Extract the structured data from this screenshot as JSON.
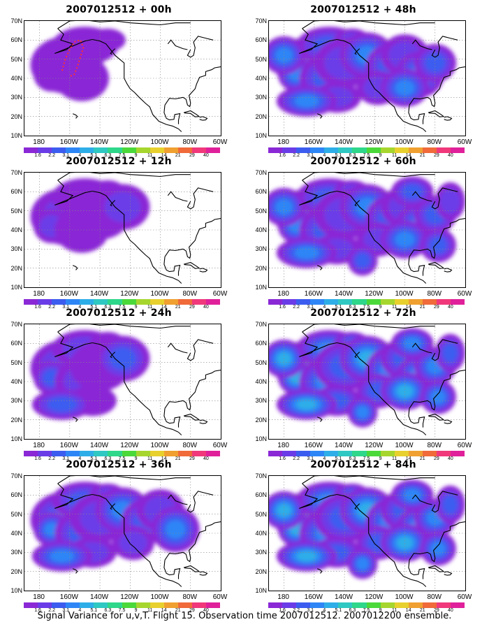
{
  "figure": {
    "caption": "Signal Variance for u,v,T. Flight 15. Observation time 2007012512. 2007012200 ensemble."
  },
  "panels": [
    {
      "title": "2007012512 + 00h",
      "lead_hours": 0,
      "intensity": 0.15,
      "coverage": 0.35,
      "track": true
    },
    {
      "title": "2007012512 + 12h",
      "lead_hours": 12,
      "intensity": 0.25,
      "coverage": 0.5,
      "track": false
    },
    {
      "title": "2007012512 + 24h",
      "lead_hours": 24,
      "intensity": 0.35,
      "coverage": 0.6,
      "track": false
    },
    {
      "title": "2007012512 + 36h",
      "lead_hours": 36,
      "intensity": 0.45,
      "coverage": 0.75,
      "track": false
    },
    {
      "title": "2007012512 + 48h",
      "lead_hours": 48,
      "intensity": 0.5,
      "coverage": 0.85,
      "track": false
    },
    {
      "title": "2007012512 + 60h",
      "lead_hours": 60,
      "intensity": 0.55,
      "coverage": 0.9,
      "track": false
    },
    {
      "title": "2007012512 + 72h",
      "lead_hours": 72,
      "intensity": 0.6,
      "coverage": 0.95,
      "track": false
    },
    {
      "title": "2007012512 + 84h",
      "lead_hours": 84,
      "intensity": 0.65,
      "coverage": 1.0,
      "track": false
    }
  ],
  "axes": {
    "lat_labels": [
      "70N",
      "60N",
      "50N",
      "40N",
      "30N",
      "20N",
      "10N"
    ],
    "lon_labels": [
      "180",
      "160W",
      "140W",
      "120W",
      "100W",
      "80W",
      "60W"
    ],
    "lat_range": [
      10,
      70
    ],
    "lon_range": [
      -190,
      -60
    ]
  },
  "colorbar": {
    "labels": [
      "1.6",
      "2.2",
      "3.1",
      "4",
      "5.1",
      "6.3",
      "7.5",
      "9",
      "11",
      "14",
      "21",
      "29",
      "40"
    ],
    "colors": [
      "#8a28d6",
      "#6a3ce8",
      "#3c5cf0",
      "#2e86f6",
      "#2eaee8",
      "#2fc8c2",
      "#2ed78a",
      "#4bd93a",
      "#a6d62e",
      "#e8d02e",
      "#f0a030",
      "#f06a3a",
      "#f0387a",
      "#e0209a"
    ]
  },
  "legend": {
    "map_background": "#ffffff",
    "coastline_color": "#000000",
    "track_color": "#ff3030"
  }
}
